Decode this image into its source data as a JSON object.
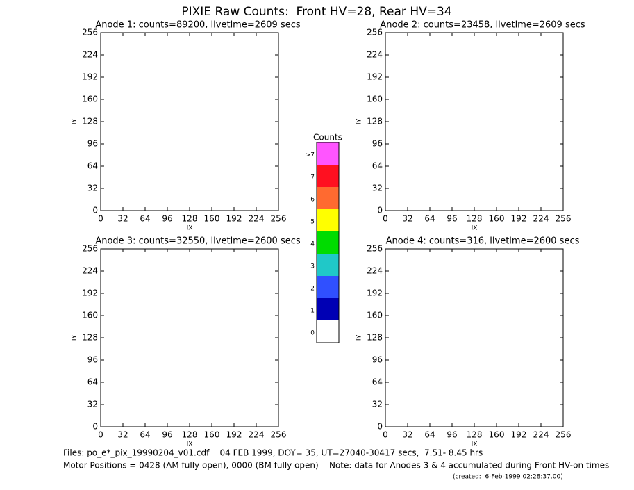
{
  "title": "PIXIE Raw Counts:  Front HV=28, Rear HV=34",
  "chart_data": [
    {
      "type": "heatmap",
      "title": "Anode 1: counts=89200, livetime=2609 secs",
      "xlabel": "IX",
      "ylabel": "IY",
      "xlim": [
        0,
        256
      ],
      "ylim": [
        0,
        256
      ],
      "xticks": [
        0,
        32,
        64,
        96,
        128,
        160,
        192,
        224,
        256
      ],
      "yticks": [
        0,
        32,
        64,
        96,
        128,
        160,
        192,
        224,
        256
      ]
    },
    {
      "type": "heatmap",
      "title": "Anode 2: counts=23458, livetime=2609 secs",
      "xlabel": "IX",
      "ylabel": "IY",
      "xlim": [
        0,
        256
      ],
      "ylim": [
        0,
        256
      ],
      "xticks": [
        0,
        32,
        64,
        96,
        128,
        160,
        192,
        224,
        256
      ],
      "yticks": [
        0,
        32,
        64,
        96,
        128,
        160,
        192,
        224,
        256
      ]
    },
    {
      "type": "heatmap",
      "title": "Anode 3: counts=32550, livetime=2600 secs",
      "xlabel": "IX",
      "ylabel": "IY",
      "xlim": [
        0,
        256
      ],
      "ylim": [
        0,
        256
      ],
      "xticks": [
        0,
        32,
        64,
        96,
        128,
        160,
        192,
        224,
        256
      ],
      "yticks": [
        0,
        32,
        64,
        96,
        128,
        160,
        192,
        224,
        256
      ]
    },
    {
      "type": "heatmap",
      "title": "Anode 4: counts=316, livetime=2600 secs",
      "xlabel": "IX",
      "ylabel": "IY",
      "xlim": [
        0,
        256
      ],
      "ylim": [
        0,
        256
      ],
      "xticks": [
        0,
        32,
        64,
        96,
        128,
        160,
        192,
        224,
        256
      ],
      "yticks": [
        0,
        32,
        64,
        96,
        128,
        160,
        192,
        224,
        256
      ]
    }
  ],
  "colorbar": {
    "title": "Counts",
    "labels": [
      "0",
      "1",
      "2",
      "3",
      "4",
      "5",
      "6",
      "7",
      ">7"
    ],
    "colors": [
      "#ffffff",
      "#0000b4",
      "#3050ff",
      "#20c8c8",
      "#00dc00",
      "#ffff00",
      "#ff6a30",
      "#ff1020",
      "#ff55ff"
    ]
  },
  "footer": {
    "files": "Files: po_e*_pix_19990204_v01.cdf    04 FEB 1999, DOY= 35, UT=27040-30417 secs,  7.51- 8.45 hrs",
    "motor": "Motor Positions = 0428 (AM fully open), 0000 (BM fully open)    Note: data for Anodes 3 & 4 accumulated during Front HV-on times",
    "created": "(created:  6-Feb-1999 02:28:37.00)"
  }
}
